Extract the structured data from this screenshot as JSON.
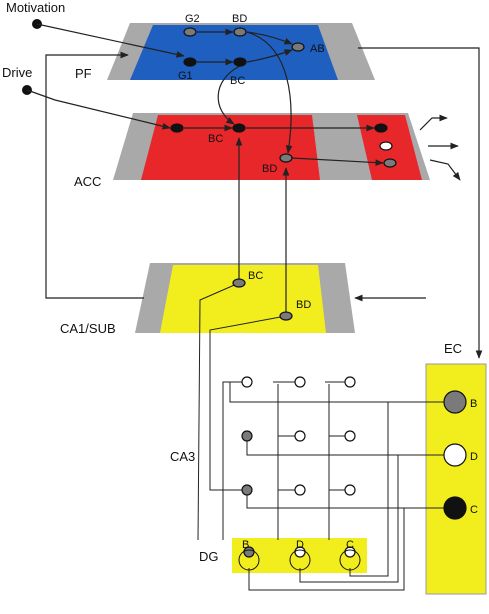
{
  "inputs": {
    "motivation": "Motivation",
    "drive": "Drive"
  },
  "regions": {
    "pf": "PF",
    "acc": "ACC",
    "ca1sub": "CA1/SUB",
    "ec": "EC",
    "ca3": "CA3",
    "dg": "DG"
  },
  "pf_nodes": {
    "g2": "G2",
    "bd": "BD",
    "g1": "G1",
    "bc": "BC",
    "ab": "AB"
  },
  "acc_nodes": {
    "bc": "BC",
    "bd": "BD"
  },
  "ca1_nodes": {
    "bc": "BC",
    "bd": "BD"
  },
  "ec_nodes": {
    "b": "B",
    "d": "D",
    "c": "C"
  },
  "dg_nodes": {
    "b": "B",
    "d": "D",
    "c": "C"
  },
  "colors": {
    "pf_fill": "#1f5fc0",
    "acc_fill": "#e8272a",
    "ca1_fill": "#f2ee1d",
    "ec_fill": "#f2ee1d",
    "dg_fill": "#f2ee1d",
    "plate_gray": "#a9a9a9",
    "node_gray": "#7a7a7a",
    "node_black": "#111111",
    "node_white": "#ffffff"
  }
}
